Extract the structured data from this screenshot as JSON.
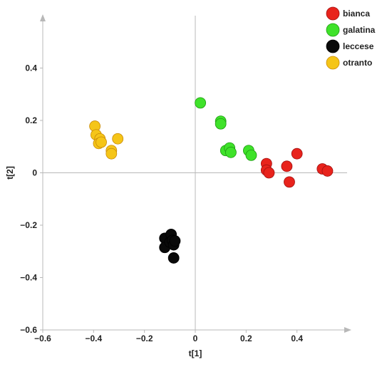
{
  "chart_data": {
    "type": "scatter",
    "title": "",
    "xlabel": "t[1]",
    "ylabel": "t[2]",
    "xlim": [
      -0.6,
      0.6
    ],
    "ylim": [
      -0.6,
      0.6
    ],
    "x_ticks": [
      -0.6,
      -0.4,
      -0.2,
      0,
      0.2,
      0.4
    ],
    "y_ticks": [
      -0.6,
      -0.4,
      -0.2,
      0,
      0.2,
      0.4
    ],
    "x_tick_labels": [
      "−0.6",
      "−0.4",
      "−0.2",
      "0",
      "0.2",
      "0.4"
    ],
    "y_tick_labels": [
      "−0.6",
      "−0.4",
      "−0.2",
      "0",
      "0.2",
      "0.4"
    ],
    "grid": false,
    "zero_lines": true,
    "legend_position": "top-right",
    "series": [
      {
        "name": "bianca",
        "color": "#e8231c",
        "stroke": "#a01010",
        "points": [
          {
            "x": 0.28,
            "y": 0.035
          },
          {
            "x": 0.28,
            "y": 0.01
          },
          {
            "x": 0.29,
            "y": 0.0
          },
          {
            "x": 0.36,
            "y": 0.025
          },
          {
            "x": 0.37,
            "y": -0.035
          },
          {
            "x": 0.4,
            "y": 0.073
          },
          {
            "x": 0.5,
            "y": 0.015
          },
          {
            "x": 0.52,
            "y": 0.007
          }
        ]
      },
      {
        "name": "galatina",
        "color": "#3fe22a",
        "stroke": "#1f9a12",
        "points": [
          {
            "x": 0.02,
            "y": 0.267
          },
          {
            "x": 0.1,
            "y": 0.197
          },
          {
            "x": 0.1,
            "y": 0.187
          },
          {
            "x": 0.12,
            "y": 0.085
          },
          {
            "x": 0.135,
            "y": 0.095
          },
          {
            "x": 0.14,
            "y": 0.078
          },
          {
            "x": 0.21,
            "y": 0.085
          },
          {
            "x": 0.22,
            "y": 0.067
          }
        ]
      },
      {
        "name": "leccese",
        "color": "#0a0a0a",
        "stroke": "#000000",
        "points": [
          {
            "x": -0.12,
            "y": -0.25
          },
          {
            "x": -0.12,
            "y": -0.285
          },
          {
            "x": -0.1,
            "y": -0.265
          },
          {
            "x": -0.095,
            "y": -0.235
          },
          {
            "x": -0.09,
            "y": -0.258
          },
          {
            "x": -0.085,
            "y": -0.275
          },
          {
            "x": -0.08,
            "y": -0.26
          },
          {
            "x": -0.085,
            "y": -0.325
          }
        ]
      },
      {
        "name": "otranto",
        "color": "#f5c518",
        "stroke": "#c98a08",
        "points": [
          {
            "x": -0.395,
            "y": 0.178
          },
          {
            "x": -0.39,
            "y": 0.145
          },
          {
            "x": -0.375,
            "y": 0.13
          },
          {
            "x": -0.38,
            "y": 0.112
          },
          {
            "x": -0.37,
            "y": 0.117
          },
          {
            "x": -0.305,
            "y": 0.13
          },
          {
            "x": -0.33,
            "y": 0.085
          },
          {
            "x": -0.33,
            "y": 0.073
          }
        ]
      }
    ]
  }
}
